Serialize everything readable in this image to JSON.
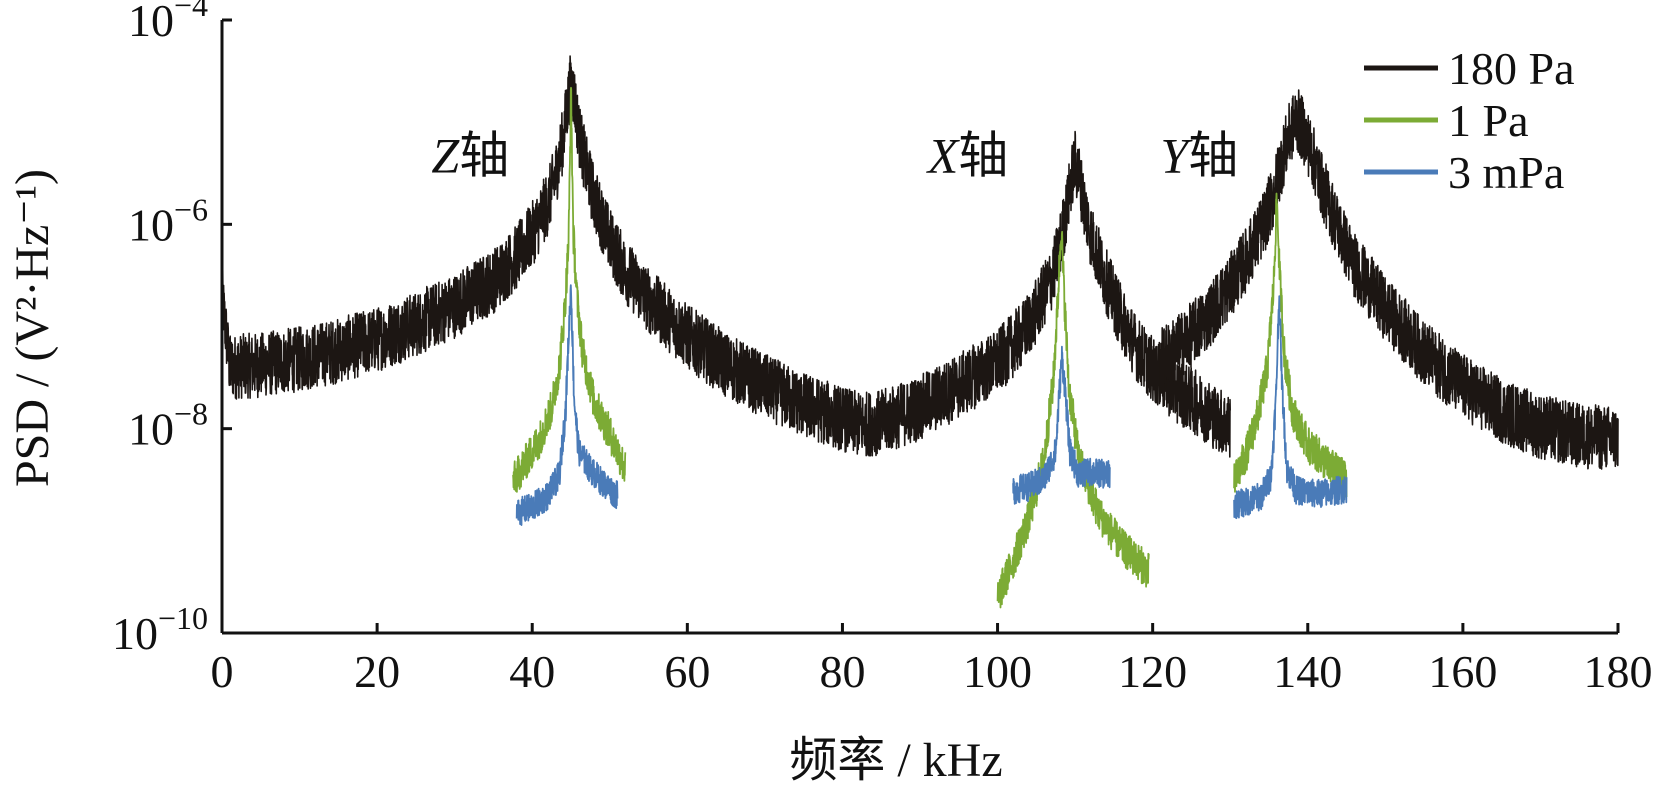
{
  "chart_data": {
    "type": "line",
    "title": "",
    "xlabel": "频率 / kHz",
    "ylabel": "PSD / (V²·Hz⁻¹)",
    "x_scale": "linear",
    "y_scale": "log",
    "xlim": [
      0,
      180
    ],
    "ylim": [
      1e-10,
      0.0001
    ],
    "x_ticks": [
      0,
      20,
      40,
      60,
      80,
      100,
      120,
      140,
      160,
      180
    ],
    "y_ticks": [
      {
        "value": 1e-10,
        "base": "10",
        "exp": "−10"
      },
      {
        "value": 1e-08,
        "base": "10",
        "exp": "−8"
      },
      {
        "value": 1e-06,
        "base": "10",
        "exp": "−6"
      },
      {
        "value": 0.0001,
        "base": "10",
        "exp": "−4"
      }
    ],
    "legend_position": "top-right",
    "grid": false,
    "series": [
      {
        "name": "180 Pa",
        "color": "#1c1613",
        "noise_amp": 0.32,
        "x": [
          0,
          1,
          5,
          10,
          15,
          20,
          25,
          30,
          35,
          38,
          40,
          42,
          43,
          44,
          44.5,
          45,
          45.5,
          46,
          47,
          48,
          50,
          52,
          55,
          60,
          65,
          70,
          75,
          80,
          82,
          85,
          90,
          95,
          100,
          103,
          105,
          107,
          108,
          109,
          109.5,
          110,
          110.5,
          111,
          112,
          114,
          116,
          118,
          120,
          123,
          126,
          128,
          130
        ],
        "y": [
          2e-07,
          4e-08,
          4.2e-08,
          4.8e-08,
          5.8e-08,
          7.5e-08,
          1.05e-07,
          1.6e-07,
          2.8e-07,
          4.8e-07,
          8e-07,
          1.6e-06,
          3e-06,
          7e-06,
          1.4e-05,
          2.5e-05,
          1.6e-05,
          8e-06,
          3.5e-06,
          1.8e-06,
          7e-07,
          3.5e-07,
          1.8e-07,
          8e-08,
          4.2e-08,
          2.6e-08,
          1.7e-08,
          1.25e-08,
          1.1e-08,
          1.15e-08,
          1.6e-08,
          2.6e-08,
          4.5e-08,
          8e-08,
          1.4e-07,
          3e-07,
          6e-07,
          1.5e-06,
          2.8e-06,
          4e-06,
          3e-06,
          1.8e-06,
          8e-07,
          2.8e-07,
          1.2e-07,
          6e-08,
          3.8e-08,
          2.4e-08,
          1.7e-08,
          1.3e-08,
          1.05e-08
        ]
      },
      {
        "name": "180 Pa",
        "color": "#1c1613",
        "noise_amp": 0.32,
        "x": [
          121,
          124,
          127,
          130,
          132,
          134,
          135.5,
          136.5,
          137.5,
          138.5,
          139.5,
          140.5,
          142,
          144,
          146,
          150,
          155,
          160,
          165,
          170,
          175,
          180
        ],
        "y": [
          4.6e-08,
          7e-08,
          1.2e-07,
          2.5e-07,
          4.5e-07,
          9e-07,
          1.8e-06,
          3.8e-06,
          7e-06,
          1.1e-05,
          8e-06,
          5e-06,
          2.2e-06,
          9e-07,
          4e-07,
          1.5e-07,
          5.5e-08,
          2.6e-08,
          1.5e-08,
          1.05e-08,
          8.5e-09,
          8e-09
        ]
      },
      {
        "name": "1 Pa",
        "color": "#7cab35",
        "noise_amp": 0.18,
        "x": [
          37.5,
          39,
          41,
          42.5,
          43.5,
          44.2,
          44.7,
          45,
          45.3,
          45.8,
          46.5,
          48,
          50,
          52
        ],
        "y": [
          3e-09,
          4.5e-09,
          8e-09,
          1.6e-08,
          4e-08,
          1.5e-07,
          7e-07,
          2e-05,
          8e-07,
          1.8e-07,
          5.5e-08,
          1.8e-08,
          9e-09,
          4e-09
        ]
      },
      {
        "name": "1 Pa",
        "color": "#7cab35",
        "noise_amp": 0.18,
        "x": [
          100,
          102,
          104,
          106,
          107.2,
          107.8,
          108.2,
          108.6,
          109.2,
          110.5,
          113,
          116,
          119.5
        ],
        "y": [
          2.2e-10,
          5e-10,
          1.3e-09,
          5e-09,
          3e-08,
          2e-07,
          1e-06,
          2e-07,
          2.5e-08,
          5e-09,
          1.5e-09,
          7e-10,
          4e-10
        ]
      },
      {
        "name": "1 Pa",
        "color": "#7cab35",
        "noise_amp": 0.18,
        "x": [
          130.5,
          132,
          133.5,
          134.8,
          135.6,
          136,
          136.4,
          137,
          138,
          140,
          142.5,
          145
        ],
        "y": [
          3e-09,
          5.5e-09,
          1.3e-08,
          4e-08,
          2.5e-07,
          1.8e-06,
          3e-07,
          5e-08,
          1.5e-08,
          7e-09,
          4.5e-09,
          3.2e-09
        ]
      },
      {
        "name": "3 mPa",
        "color": "#4a7bb8",
        "noise_amp": 0.14,
        "x": [
          38,
          40,
          42,
          43.5,
          44.3,
          44.7,
          45,
          45.4,
          46,
          47.5,
          49,
          51
        ],
        "y": [
          1.5e-09,
          1.7e-09,
          2.2e-09,
          3.5e-09,
          1.5e-08,
          8e-08,
          2.5e-07,
          2e-08,
          6e-09,
          4e-09,
          3e-09,
          2.2e-09
        ]
      },
      {
        "name": "3 mPa",
        "color": "#4a7bb8",
        "noise_amp": 0.14,
        "x": [
          102,
          104,
          106,
          107.5,
          108,
          108.3,
          108.7,
          109.3,
          110.5,
          112,
          114.5
        ],
        "y": [
          2.5e-09,
          2.7e-09,
          3.2e-09,
          6e-09,
          2.5e-08,
          5e-08,
          2.5e-08,
          6e-09,
          3.5e-09,
          3.8e-09,
          3.5e-09
        ]
      },
      {
        "name": "3 mPa",
        "color": "#4a7bb8",
        "noise_amp": 0.14,
        "x": [
          130.5,
          132,
          134,
          135.3,
          135.9,
          136.3,
          136.7,
          137.3,
          138.5,
          141,
          143,
          145
        ],
        "y": [
          1.8e-09,
          1.9e-09,
          2.2e-09,
          3.5e-09,
          2e-08,
          2e-07,
          2.5e-08,
          4e-09,
          2.5e-09,
          2.3e-09,
          2.4e-09,
          2.6e-09
        ]
      }
    ],
    "legend": [
      {
        "label": "180 Pa",
        "color": "#1c1613"
      },
      {
        "label": "1 Pa",
        "color": "#7cab35"
      },
      {
        "label": "3 mPa",
        "color": "#4a7bb8"
      }
    ],
    "annotations": [
      {
        "letter": "Z",
        "suffix": "轴",
        "x": 27,
        "y": 3.2e-06
      },
      {
        "letter": "X",
        "suffix": "轴",
        "x": 91,
        "y": 3.2e-06
      },
      {
        "letter": "Y",
        "suffix": "轴",
        "x": 121,
        "y": 3.2e-06
      }
    ]
  }
}
